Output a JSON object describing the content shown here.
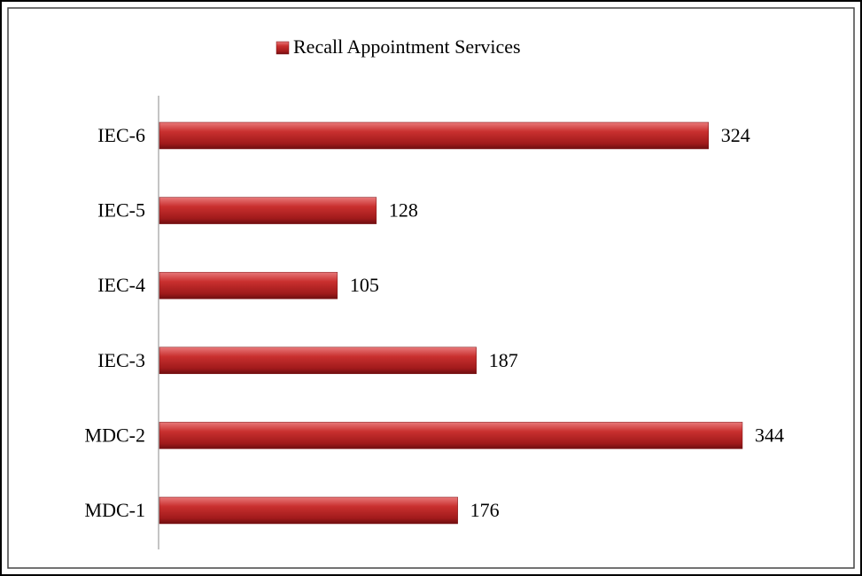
{
  "chart_data": {
    "type": "bar",
    "orientation": "horizontal",
    "categories": [
      "MDC-1",
      "MDC-2",
      "IEC-3",
      "IEC-4",
      "IEC-5",
      "IEC-6"
    ],
    "series": [
      {
        "name": "Recall Appointment Services",
        "color": "#c0282a",
        "values": [
          176,
          344,
          187,
          105,
          128,
          324
        ]
      }
    ],
    "legend": "top"
  }
}
